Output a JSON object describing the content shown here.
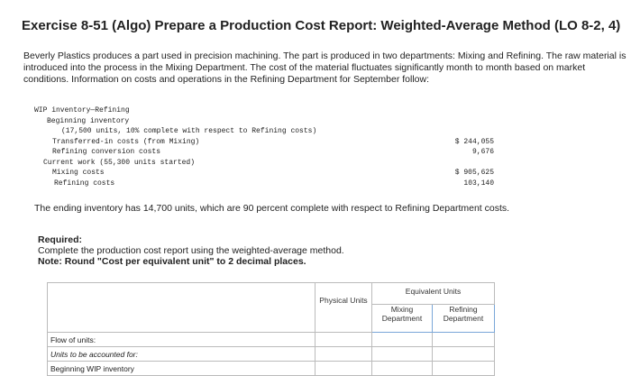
{
  "header": {
    "title": "Exercise 8-51 (Algo) Prepare a Production Cost Report: Weighted-Average Method (LO 8-2, 4)"
  },
  "intro": "Beverly Plastics produces a part used in precision machining. The part is produced in two departments: Mixing and Refining. The raw material is introduced into the process in the Mixing Department. The cost of the material fluctuates significantly month to month based on market conditions. Information on costs and operations in the Refining Department for September follow:",
  "inventory_block": [
    {
      "label": "WIP inventory—Refining"
    },
    {
      "label": "Beginning inventory"
    },
    {
      "label": "(17,500 units, 10% complete with respect to Refining costs)"
    },
    {
      "label": "Transferred-in costs (from Mixing)",
      "amount": "$ 244,055"
    },
    {
      "label": "Refining conversion costs",
      "amount": "9,676"
    },
    {
      "label": "Current work (55,300 units started)"
    },
    {
      "label": "Mixing costs",
      "amount": "$ 905,625"
    },
    {
      "label": "Refining costs",
      "amount": "103,140"
    }
  ],
  "ending_note": "The ending inventory has 14,700 units, which are 90 percent complete with respect to Refining Department costs.",
  "required": {
    "heading": "Required:",
    "instruction": "Complete the production cost report using the weighted-average method.",
    "note": "Note: Round \"Cost per equivalent unit\" to 2 decimal places."
  },
  "table": {
    "columns": {
      "physical": "Physical Units",
      "equivalent": "Equivalent Units",
      "mixing": "Mixing Department",
      "refining": "Refining Department"
    },
    "rows": [
      "Flow of units:",
      "Units to be accounted for:",
      "Beginning WIP inventory"
    ]
  }
}
